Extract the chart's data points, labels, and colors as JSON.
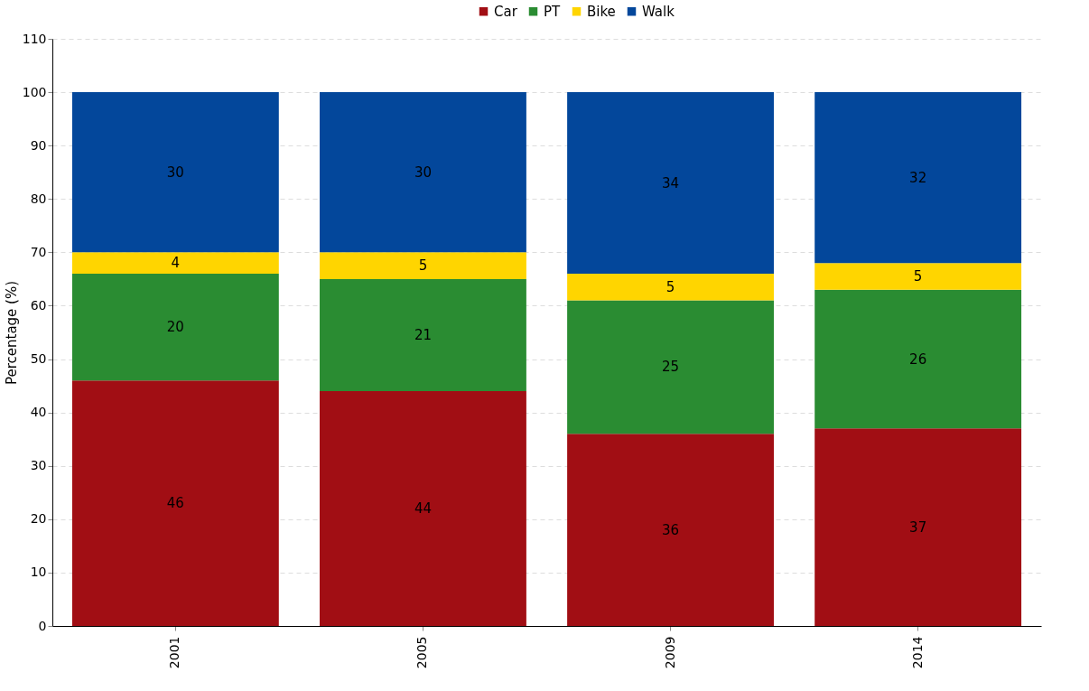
{
  "chart_data": {
    "type": "bar",
    "stacked": true,
    "ylabel": "Percentage (%)",
    "categories": [
      "2001",
      "2005",
      "2009",
      "2014"
    ],
    "series": [
      {
        "name": "Car",
        "color": "#a10e14",
        "values": [
          46,
          44,
          36,
          37
        ]
      },
      {
        "name": "PT",
        "color": "#2a8c32",
        "values": [
          20,
          21,
          25,
          26
        ]
      },
      {
        "name": "Bike",
        "color": "#ffd500",
        "values": [
          4,
          5,
          5,
          5
        ]
      },
      {
        "name": "Walk",
        "color": "#03479b",
        "values": [
          30,
          30,
          34,
          32
        ]
      }
    ],
    "ylim": [
      0,
      110
    ],
    "yticks": [
      0,
      10,
      20,
      30,
      40,
      50,
      60,
      70,
      80,
      90,
      100,
      110
    ],
    "grid": "y",
    "legend": "top",
    "data_labels": true
  }
}
